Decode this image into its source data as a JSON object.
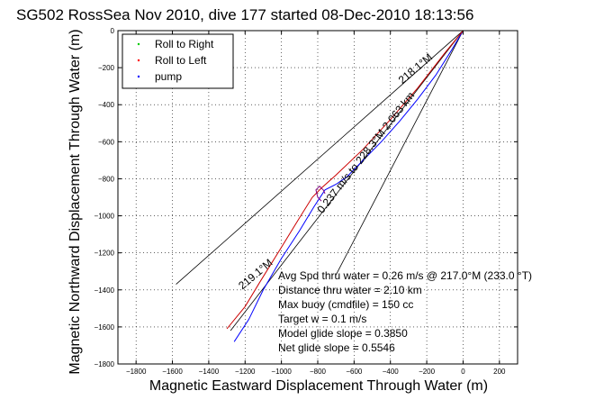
{
  "chart_data": {
    "type": "line",
    "title": "SG502 RossSea Nov 2010, dive 177 started 08-Dec-2010 18:13:56",
    "xlabel": "Magnetic Eastward Displacement Through Water (m)",
    "ylabel": "Magnetic Northward Displacement Through Water (m)",
    "xlim": [
      -1900,
      300
    ],
    "ylim": [
      -1800,
      0
    ],
    "xticks": [
      -1800,
      -1600,
      -1400,
      -1200,
      -1000,
      -800,
      -600,
      -400,
      -200,
      0,
      200
    ],
    "xtick_labels": [
      "−1800",
      "−1600",
      "−1400",
      "−1200",
      "−1000",
      "−800",
      "−600",
      "−400",
      "−200",
      "0",
      "200"
    ],
    "yticks": [
      0,
      -200,
      -400,
      -600,
      -800,
      -1000,
      -1200,
      -1400,
      -1600,
      -1800
    ],
    "ytick_labels": [
      "0",
      "−200",
      "−400",
      "−600",
      "−800",
      "−1000",
      "−1200",
      "−1400",
      "−1600",
      "−1800"
    ],
    "grid": true,
    "legend_position": "top-left",
    "legend": [
      {
        "label": "Roll to Right",
        "color": "#00cc00",
        "marker": "dot"
      },
      {
        "label": "Roll to Left",
        "color": "#ff0000",
        "marker": "dot"
      },
      {
        "label": "pump",
        "color": "#0000ff",
        "marker": "dot"
      }
    ],
    "series": [
      {
        "color": "#0000ff",
        "x": [
          0,
          -60,
          -150,
          -250,
          -350,
          -450,
          -550,
          -640,
          -700,
          -760,
          -780,
          -820,
          -900,
          -1000,
          -1100,
          -1180,
          -1260
        ],
        "y": [
          0,
          -100,
          -240,
          -370,
          -490,
          -600,
          -700,
          -790,
          -830,
          -860,
          -890,
          -950,
          -1080,
          -1230,
          -1400,
          -1560,
          -1680
        ]
      },
      {
        "color": "#cc0000",
        "x": [
          0,
          -100,
          -250,
          -400,
          -550,
          -700,
          -780,
          -830,
          -900,
          -1000,
          -1120,
          -1200,
          -1300
        ],
        "y": [
          0,
          -120,
          -310,
          -480,
          -640,
          -780,
          -850,
          -900,
          -1010,
          -1170,
          -1360,
          -1490,
          -1610
        ]
      },
      {
        "color": "#800080",
        "x": [
          -760,
          -770,
          -790,
          -810,
          -800,
          -780
        ],
        "y": [
          -880,
          -860,
          -840,
          -860,
          -900,
          -920
        ]
      }
    ],
    "heading_lines": [
      {
        "color": "#000000",
        "x": [
          0,
          -1580
        ],
        "y": [
          0,
          -1370
        ]
      },
      {
        "color": "#000000",
        "x": [
          0,
          -700
        ],
        "y": [
          0,
          -1320
        ]
      },
      {
        "color": "#000000",
        "x": [
          0,
          -1280
        ],
        "y": [
          0,
          -1620
        ]
      }
    ],
    "track_labels": [
      {
        "text": "218.1°M",
        "x": -250,
        "y": -220,
        "angle": 40
      },
      {
        "text": "0.237 m/s to 228.3°M 2.063 km",
        "x": -520,
        "y": -670,
        "angle": 52
      },
      {
        "text": "219.1°M",
        "x": -1130,
        "y": -1330,
        "angle": 40
      }
    ],
    "annotations": [
      "Avg Spd thru water = 0.26 m/s @ 217.0°M (233.0 °T)",
      "Distance thru water = 2.10 km",
      "Max buoy (cmdfile) = 150 cc",
      "Target w = 0.1 m/s",
      "Model glide slope = 0.3850",
      "Net glide slope = 0.5546"
    ]
  }
}
